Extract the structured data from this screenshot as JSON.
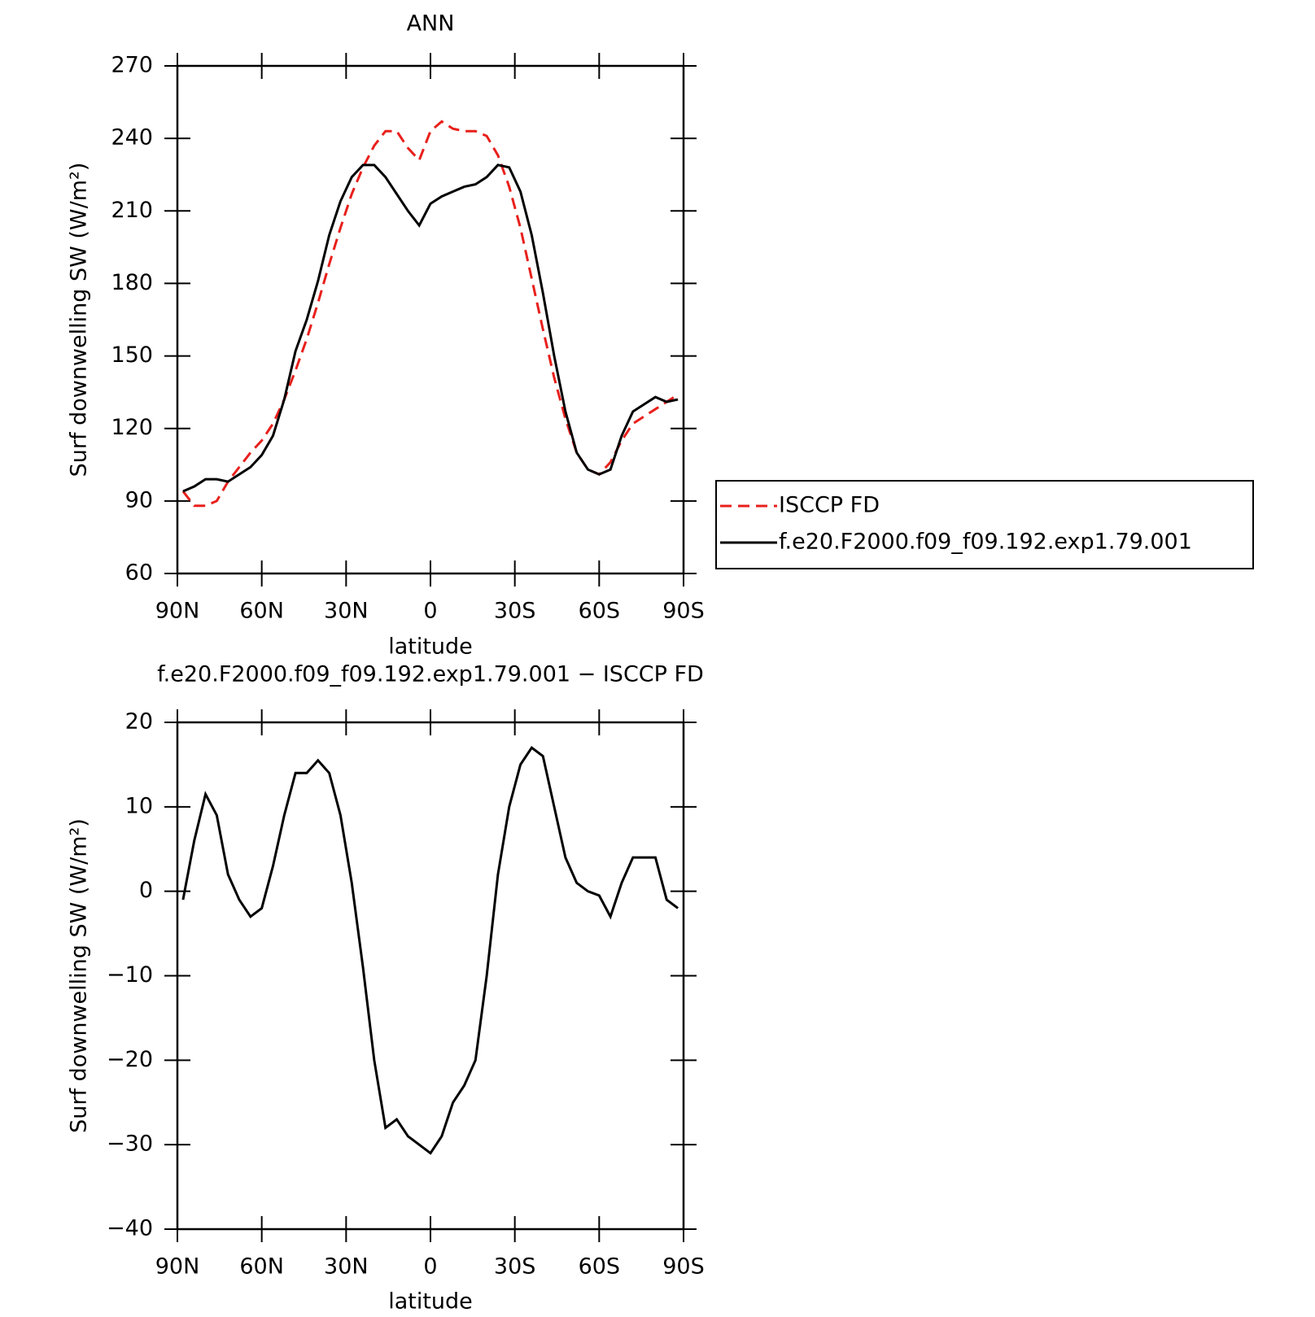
{
  "chart_data": [
    {
      "type": "line",
      "title": "ANN",
      "xlabel": "latitude",
      "ylabel": "Surf downwelling SW (W/m²)",
      "x": [
        88,
        84,
        80,
        76,
        72,
        68,
        64,
        60,
        56,
        52,
        48,
        44,
        40,
        36,
        32,
        28,
        24,
        20,
        16,
        12,
        8,
        4,
        0,
        -4,
        -8,
        -12,
        -16,
        -20,
        -24,
        -28,
        -32,
        -36,
        -40,
        -44,
        -48,
        -52,
        -56,
        -60,
        -64,
        -68,
        -72,
        -76,
        -80,
        -84,
        -88
      ],
      "series": [
        {
          "name": "ISCCP FD",
          "color": "#e8201c",
          "style": "dashed",
          "values": [
            94,
            88,
            88,
            90,
            98,
            104,
            110,
            115,
            122,
            132,
            144,
            157,
            172,
            188,
            203,
            217,
            228,
            237,
            243,
            243,
            236,
            231,
            243,
            247,
            244,
            243,
            243,
            241,
            233,
            220,
            203,
            182,
            161,
            141,
            124,
            110,
            103,
            101,
            106,
            115,
            122,
            125,
            128,
            131,
            134
          ]
        },
        {
          "name": "f.e20.F2000.f09_f09.192.exp1.79.001",
          "color": "#000000",
          "style": "solid",
          "values": [
            94,
            96,
            99,
            99,
            98,
            101,
            104,
            109,
            117,
            132,
            152,
            165,
            181,
            200,
            214,
            224,
            229,
            229,
            224,
            217,
            210,
            204,
            213,
            216,
            218,
            220,
            221,
            224,
            229,
            228,
            218,
            200,
            176,
            150,
            127,
            110,
            103,
            101,
            103,
            117,
            127,
            130,
            133,
            131,
            132
          ]
        }
      ],
      "xlim": [
        90,
        -90
      ],
      "xticks": [
        {
          "value": 90,
          "label": "90N"
        },
        {
          "value": 60,
          "label": "60N"
        },
        {
          "value": 30,
          "label": "30N"
        },
        0,
        {
          "value": -30,
          "label": "30S"
        },
        {
          "value": -60,
          "label": "60S"
        },
        {
          "value": -90,
          "label": "90S"
        }
      ],
      "ylim": [
        60,
        270
      ],
      "yticks": [
        60,
        90,
        120,
        150,
        180,
        210,
        240,
        270
      ],
      "legend": "outside right"
    },
    {
      "type": "line",
      "title": "f.e20.F2000.f09_f09.192.exp1.79.001 − ISCCP FD",
      "xlabel": "latitude",
      "ylabel": "Surf downwelling SW (W/m²)",
      "x": [
        88,
        84,
        80,
        76,
        72,
        68,
        64,
        60,
        56,
        52,
        48,
        44,
        40,
        36,
        32,
        28,
        24,
        20,
        16,
        12,
        8,
        4,
        0,
        -4,
        -8,
        -12,
        -16,
        -20,
        -24,
        -28,
        -32,
        -36,
        -40,
        -44,
        -48,
        -52,
        -56,
        -60,
        -64,
        -68,
        -72,
        -76,
        -80,
        -84,
        -88
      ],
      "series": [
        {
          "color": "#000000",
          "style": "solid",
          "values": [
            -1,
            6,
            11.5,
            9,
            2,
            -1,
            -3,
            -2,
            3,
            9,
            14,
            14,
            15.5,
            14,
            9,
            1,
            -9,
            -20,
            -28,
            -27,
            -29,
            -30,
            -31,
            -29,
            -25,
            -23,
            -20,
            -10,
            2,
            10,
            15,
            17,
            16,
            10,
            4,
            1,
            0,
            -0.5,
            -3,
            1,
            4,
            4,
            4,
            -1,
            -2
          ]
        }
      ],
      "xlim": [
        90,
        -90
      ],
      "xticks": [
        {
          "value": 90,
          "label": "90N"
        },
        {
          "value": 60,
          "label": "60N"
        },
        {
          "value": 30,
          "label": "30N"
        },
        0,
        {
          "value": -30,
          "label": "30S"
        },
        {
          "value": -60,
          "label": "60S"
        },
        {
          "value": -90,
          "label": "90S"
        }
      ],
      "ylim": [
        -40,
        20
      ],
      "yticks": [
        {
          "value": -40,
          "label": "−40"
        },
        {
          "value": -30,
          "label": "−30"
        },
        {
          "value": -20,
          "label": "−20"
        },
        {
          "value": -10,
          "label": "−10"
        },
        0,
        10,
        20
      ]
    }
  ]
}
